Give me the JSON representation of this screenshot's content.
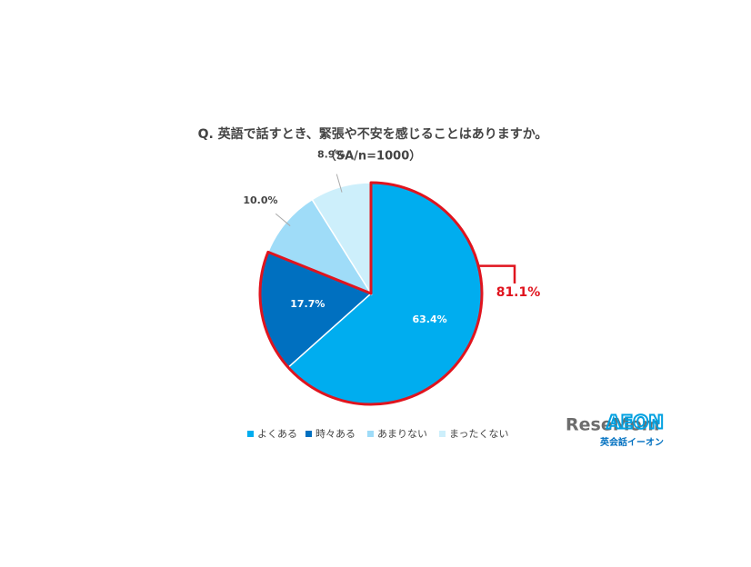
{
  "chart_data": {
    "type": "pie",
    "title": "Q. 英語で話すとき、緊張や不安を感じることはありますか。",
    "subtitle": "（SA/n=1000）",
    "categories": [
      "よくある",
      "時々ある",
      "あまりない",
      "まったくない"
    ],
    "values": [
      63.4,
      17.7,
      10.0,
      8.9
    ],
    "value_labels": [
      "63.4%",
      "17.7%",
      "10.0%",
      "8.9%"
    ],
    "colors": [
      "#00adef",
      "#0070c0",
      "#9fdcf8",
      "#cdeffb"
    ],
    "annotation": {
      "value": 81.1,
      "label": "81.1%"
    },
    "annotation_color": "#e0141e"
  },
  "logo": {
    "name": "ReseMom",
    "brand": "AEON",
    "brand_sub": "英会話イーオン"
  }
}
